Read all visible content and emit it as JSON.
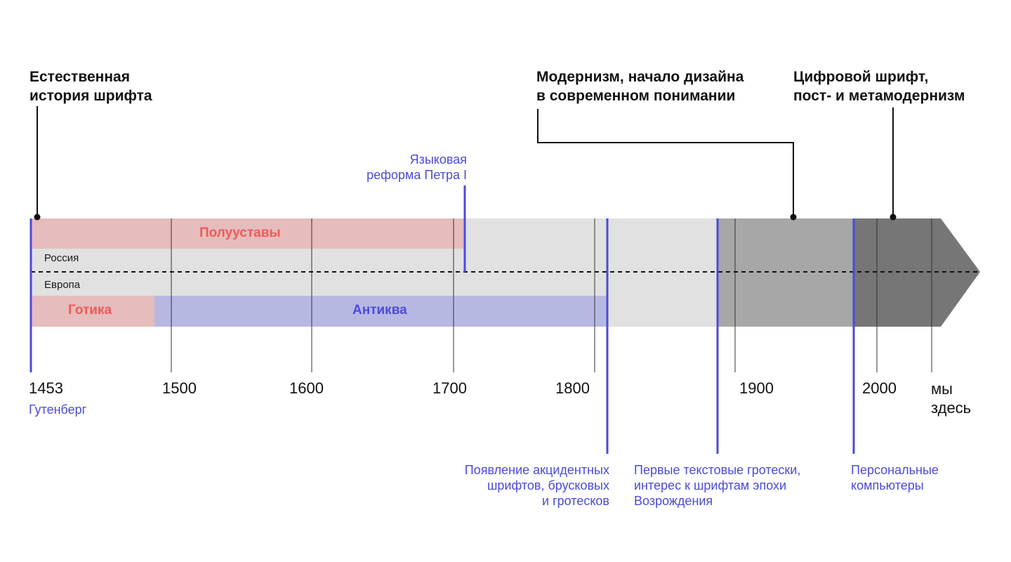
{
  "colors": {
    "background": "#ffffff",
    "band_light": "#e0e1e0",
    "band_mid": "#a6a7a6",
    "band_dark": "#767676",
    "red_fill": "#e6bcbc",
    "red_text": "#ef5a5a",
    "blue_fill": "#b7b8e2",
    "blue_text": "#4b4bd8",
    "event_line": "#4b4bd8",
    "text": "#111111"
  },
  "headings": {
    "natural_history": [
      "Естественная",
      "история шрифта"
    ],
    "modernism": [
      "Модернизм, начало дизайна",
      "в современном понимании"
    ],
    "digital": [
      "Цифровой шрифт,",
      "пост- и метамодернизм"
    ]
  },
  "rows": {
    "russia": "Россия",
    "europe": "Европа"
  },
  "bands": {
    "poluustavy": "Полууставы",
    "gotika": "Готика",
    "antikva": "Антиква"
  },
  "years": {
    "y1453": "1453",
    "y1500": "1500",
    "y1600": "1600",
    "y1700": "1700",
    "y1800": "1800",
    "y1900": "1900",
    "y2000": "2000",
    "now": [
      "мы",
      "здесь"
    ]
  },
  "events": {
    "gutenberg": "Гутенберг",
    "peter_reform": [
      "Языковая",
      "реформа Петра I"
    ],
    "accident_fonts": [
      "Появление акцидентных",
      "шрифтов, брусковых",
      "и гротесков"
    ],
    "first_grotesks": [
      "Первые текстовые гротески,",
      "интерес к шрифтам эпохи",
      "Возрождения"
    ],
    "personal_computers": [
      "Персональные",
      "компьютеры"
    ]
  }
}
